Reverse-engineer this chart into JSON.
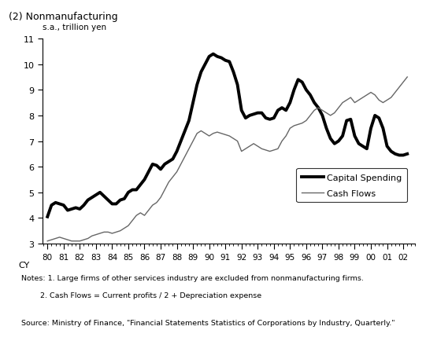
{
  "title": "(2) Nonmanufacturing",
  "ylabel": "s.a., trillion yen",
  "xlabel": "CY",
  "ylim": [
    3,
    11
  ],
  "yticks": [
    3,
    4,
    5,
    6,
    7,
    8,
    9,
    10,
    11
  ],
  "xlim_start": 1979.7,
  "xlim_end": 2002.75,
  "notes_line1": "Notes: 1. Large firms of other services industry are excluded from nonmanufacturing firms.",
  "notes_line2": "        2. Cash Flows = Current profits / 2 + Depreciation expense",
  "source": "Source: Ministry of Finance, \"Financial Statements Statistics of Corporations by Industry, Quarterly.\"",
  "capital_spending": [
    4.05,
    4.5,
    4.6,
    4.55,
    4.5,
    4.3,
    4.35,
    4.4,
    4.35,
    4.5,
    4.7,
    4.8,
    4.9,
    5.0,
    4.85,
    4.7,
    4.55,
    4.55,
    4.7,
    4.75,
    5.0,
    5.1,
    5.1,
    5.3,
    5.5,
    5.8,
    6.1,
    6.05,
    5.9,
    6.1,
    6.2,
    6.3,
    6.6,
    7.0,
    7.4,
    7.8,
    8.5,
    9.2,
    9.7,
    10.0,
    10.3,
    10.4,
    10.3,
    10.25,
    10.15,
    10.1,
    9.7,
    9.2,
    8.2,
    7.9,
    8.0,
    8.05,
    8.1,
    8.1,
    7.9,
    7.85,
    7.9,
    8.2,
    8.3,
    8.2,
    8.5,
    9.0,
    9.4,
    9.3,
    9.0,
    8.8,
    8.5,
    8.3,
    8.0,
    7.5,
    7.1,
    6.9,
    7.0,
    7.2,
    7.8,
    7.85,
    7.2,
    6.9,
    6.8,
    6.7,
    7.5,
    8.0,
    7.9,
    7.5,
    6.8,
    6.6,
    6.5,
    6.45,
    6.45,
    6.5
  ],
  "cash_flows": [
    3.1,
    3.15,
    3.2,
    3.25,
    3.2,
    3.15,
    3.1,
    3.1,
    3.1,
    3.15,
    3.2,
    3.3,
    3.35,
    3.4,
    3.45,
    3.45,
    3.4,
    3.45,
    3.5,
    3.6,
    3.7,
    3.9,
    4.1,
    4.2,
    4.1,
    4.3,
    4.5,
    4.6,
    4.8,
    5.1,
    5.4,
    5.6,
    5.8,
    6.1,
    6.4,
    6.7,
    7.0,
    7.3,
    7.4,
    7.3,
    7.2,
    7.3,
    7.35,
    7.3,
    7.25,
    7.2,
    7.1,
    7.0,
    6.6,
    6.7,
    6.8,
    6.9,
    6.8,
    6.7,
    6.65,
    6.6,
    6.65,
    6.7,
    7.0,
    7.2,
    7.5,
    7.6,
    7.65,
    7.7,
    7.8,
    8.0,
    8.2,
    8.3,
    8.2,
    8.1,
    8.0,
    8.1,
    8.3,
    8.5,
    8.6,
    8.7,
    8.5,
    8.6,
    8.7,
    8.8,
    8.9,
    8.8,
    8.6,
    8.5,
    8.6,
    8.7,
    8.9,
    9.1,
    9.3,
    9.5
  ],
  "capital_spending_lw": 2.8,
  "cash_flows_lw": 1.0,
  "capital_spending_color": "#000000",
  "cash_flows_color": "#666666",
  "background_color": "#ffffff"
}
